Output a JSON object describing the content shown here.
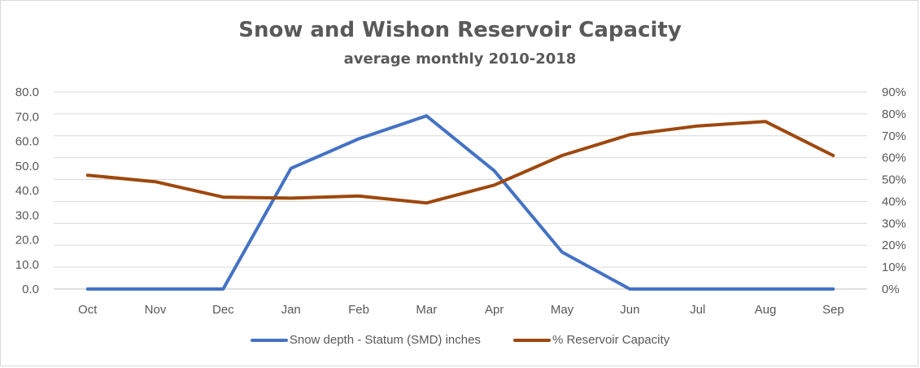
{
  "chart_data": {
    "type": "line",
    "title": "Snow and Wishon Reservoir Capacity",
    "subtitle": "average monthly 2010-2018",
    "categories": [
      "Oct",
      "Nov",
      "Dec",
      "Jan",
      "Feb",
      "Mar",
      "Apr",
      "May",
      "Jun",
      "Jul",
      "Aug",
      "Sep"
    ],
    "y_left": {
      "ylim": [
        0,
        80
      ],
      "ticks": [
        0,
        10,
        20,
        30,
        40,
        50,
        60,
        70,
        80
      ],
      "tick_labels": [
        "0.0",
        "10.0",
        "20.0",
        "30.0",
        "40.0",
        "50.0",
        "60.0",
        "70.0",
        "80.0"
      ]
    },
    "y_right": {
      "ylim": [
        0,
        90
      ],
      "ticks": [
        0,
        10,
        20,
        30,
        40,
        50,
        60,
        70,
        80,
        90
      ],
      "tick_labels": [
        "0%",
        "10%",
        "20%",
        "30%",
        "40%",
        "50%",
        "60%",
        "70%",
        "80%",
        "90%"
      ]
    },
    "grid": true,
    "legend_position": "bottom",
    "series": [
      {
        "name": "Snow depth - Statum (SMD) inches",
        "axis": "left",
        "color": "#4472c4",
        "values": [
          0,
          0,
          0,
          49,
          61,
          70.3,
          48,
          15,
          0,
          0,
          0,
          0
        ]
      },
      {
        "name": "% Reservoir Capacity",
        "axis": "right",
        "color": "#9e480e",
        "values": [
          52,
          49,
          42,
          41.5,
          42.5,
          39.3,
          47.5,
          61,
          70.5,
          74.5,
          76.5,
          61
        ]
      }
    ]
  }
}
